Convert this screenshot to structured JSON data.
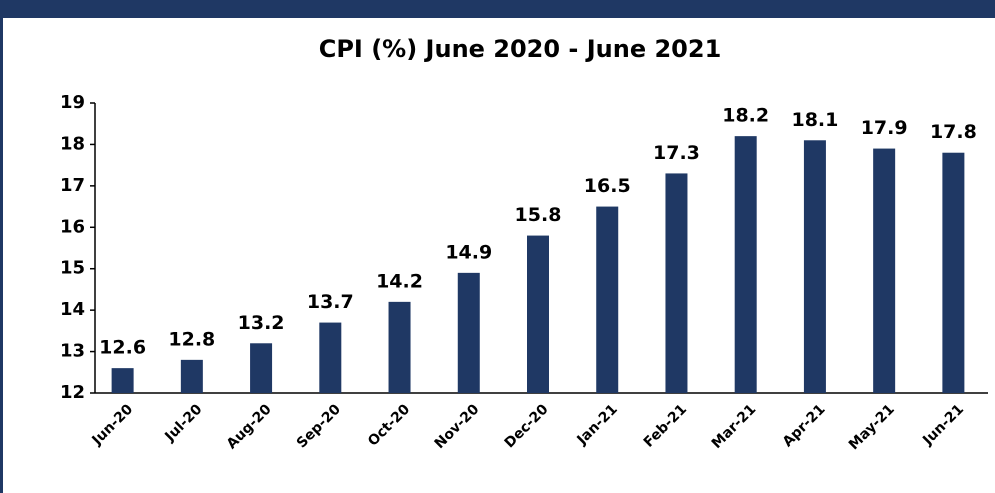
{
  "chart_data": {
    "type": "bar",
    "title": "CPI (%) June 2020 - June 2021",
    "categories": [
      "Jun-20",
      "Jul-20",
      "Aug-20",
      "Sep-20",
      "Oct-20",
      "Nov-20",
      "Dec-20",
      "Jan-21",
      "Feb-21",
      "Mar-21",
      "Apr-21",
      "May-21",
      "Jun-21"
    ],
    "values": [
      12.6,
      12.8,
      13.2,
      13.7,
      14.2,
      14.9,
      15.8,
      16.5,
      17.3,
      18.2,
      18.1,
      17.9,
      17.8
    ],
    "color": "#1f3864",
    "ylim": [
      12,
      19
    ],
    "yticks": [
      12,
      13,
      14,
      15,
      16,
      17,
      18,
      19
    ],
    "grid": false
  }
}
